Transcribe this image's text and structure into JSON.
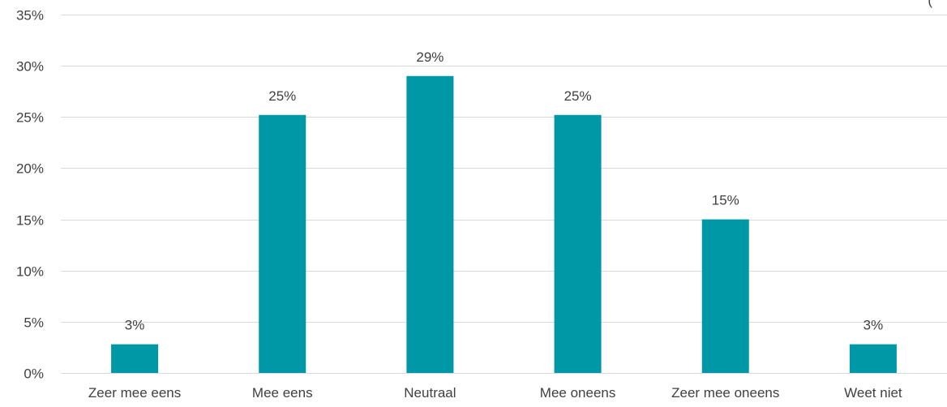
{
  "chart_data": {
    "type": "bar",
    "title": "",
    "xlabel": "",
    "ylabel": "",
    "categories": [
      "Zeer mee eens",
      "Mee eens",
      "Neutraal",
      "Mee oneens",
      "Zeer mee oneens",
      "Weet niet"
    ],
    "values": [
      2.8,
      25.2,
      29.0,
      25.2,
      15.0,
      2.8
    ],
    "data_labels": [
      "3%",
      "25%",
      "29%",
      "25%",
      "15%",
      "3%"
    ],
    "ylim": [
      0,
      35
    ],
    "yticks": [
      0,
      5,
      10,
      15,
      20,
      25,
      30,
      35
    ],
    "ytick_labels": [
      "0%",
      "5%",
      "10%",
      "15%",
      "20%",
      "25%",
      "30%",
      "35%"
    ],
    "grid": true,
    "legend": "none",
    "bar_color": "#0097a7",
    "clipped_text": "("
  }
}
